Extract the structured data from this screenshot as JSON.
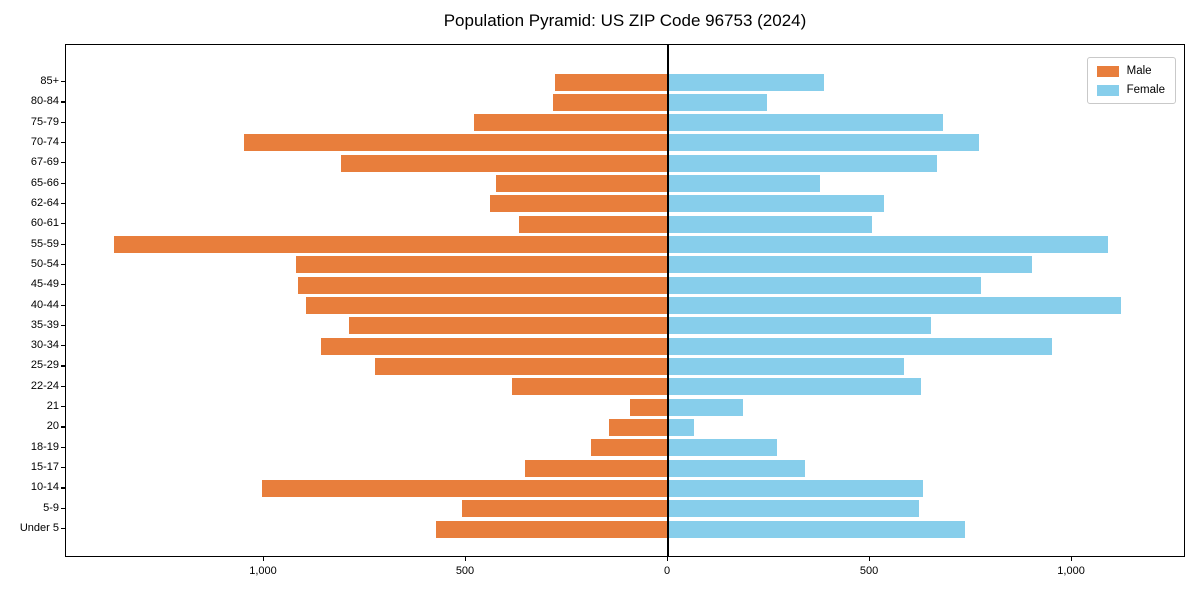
{
  "chart_data": {
    "type": "bar",
    "subtype": "population-pyramid",
    "title": "Population Pyramid: US ZIP Code 96753 (2024)",
    "categories_top_to_bottom": [
      "85+",
      "80-84",
      "75-79",
      "70-74",
      "67-69",
      "65-66",
      "62-64",
      "60-61",
      "55-59",
      "50-54",
      "45-49",
      "40-44",
      "35-39",
      "30-34",
      "25-29",
      "22-24",
      "21",
      "20",
      "18-19",
      "15-17",
      "10-14",
      "5-9",
      "Under 5"
    ],
    "series": [
      {
        "name": "Male",
        "side": "left",
        "color": "#E87E3C",
        "values": [
          280,
          285,
          480,
          1050,
          810,
          425,
          440,
          370,
          1370,
          920,
          915,
          895,
          790,
          860,
          725,
          385,
          95,
          145,
          190,
          355,
          1005,
          510,
          575
        ]
      },
      {
        "name": "Female",
        "side": "right",
        "color": "#87CEEB",
        "values": [
          385,
          245,
          680,
          770,
          665,
          375,
          535,
          505,
          1090,
          900,
          775,
          1120,
          650,
          950,
          585,
          625,
          185,
          65,
          270,
          340,
          630,
          620,
          735
        ]
      }
    ],
    "x_axis": {
      "tick_values": [
        -1000,
        -500,
        0,
        500,
        1000
      ],
      "tick_labels": [
        "1,000",
        "500",
        "0",
        "500",
        "1,000"
      ],
      "xlim": [
        -1490,
        1282
      ]
    },
    "y_axis": {
      "label": "",
      "categories_are_age_groups": true
    },
    "legend": {
      "position": "upper-right",
      "entries": [
        "Male",
        "Female"
      ]
    },
    "grid": false,
    "zero_line": true,
    "frame_color": "#000000",
    "background": "#FFFFFF"
  }
}
